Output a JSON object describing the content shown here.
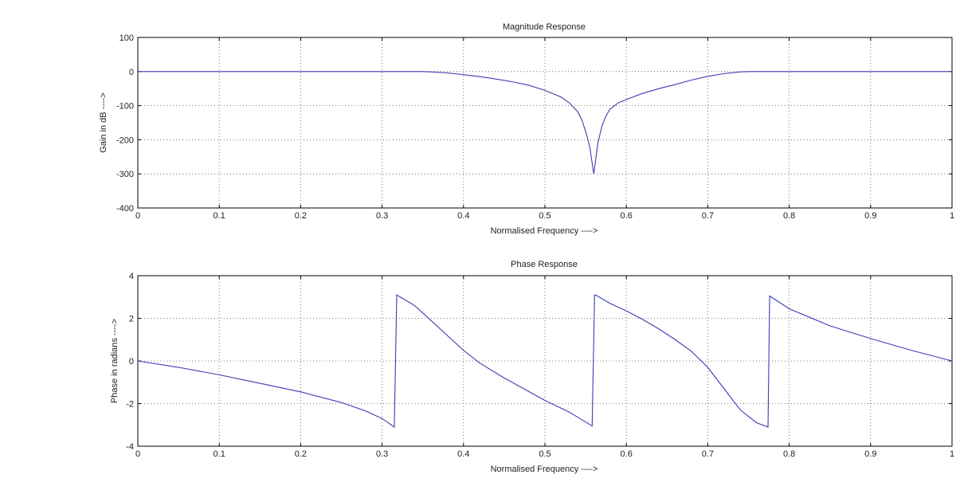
{
  "chart_data": [
    {
      "type": "line",
      "title": "Magnitude Response",
      "xlabel": "Normalised Frequency ---->",
      "ylabel": "Gain in dB ---->",
      "xlim": [
        0,
        1
      ],
      "ylim": [
        -400,
        100
      ],
      "xticks": [
        0,
        0.1,
        0.2,
        0.3,
        0.4,
        0.5,
        0.6,
        0.7,
        0.8,
        0.9,
        1
      ],
      "yticks": [
        -400,
        -300,
        -200,
        -100,
        0,
        100
      ],
      "grid": "dotted",
      "line_color": "#3c3cb4",
      "series": [
        {
          "x": [
            0,
            0.1,
            0.2,
            0.3,
            0.35,
            0.36,
            0.38,
            0.4,
            0.42,
            0.44,
            0.46,
            0.48,
            0.5,
            0.52,
            0.53,
            0.54,
            0.545,
            0.55,
            0.555,
            0.56,
            0.565,
            0.57,
            0.575,
            0.58,
            0.59,
            0.6,
            0.62,
            0.64,
            0.66,
            0.68,
            0.7,
            0.72,
            0.74,
            0.75,
            0.8,
            0.9,
            1.0
          ],
          "y": [
            0,
            0,
            0,
            0,
            0,
            -1,
            -4,
            -9,
            -15,
            -22,
            -30,
            -40,
            -55,
            -75,
            -92,
            -117,
            -140,
            -175,
            -220,
            -300,
            -210,
            -160,
            -130,
            -110,
            -92,
            -82,
            -64,
            -50,
            -38,
            -25,
            -14,
            -6,
            -1,
            0,
            0,
            0,
            0
          ]
        }
      ]
    },
    {
      "type": "line",
      "title": "Phase Response",
      "xlabel": "Normalised Frequency ---->",
      "ylabel": "Phase in radians ---->",
      "xlim": [
        0,
        1
      ],
      "ylim": [
        -4,
        4
      ],
      "xticks": [
        0,
        0.1,
        0.2,
        0.3,
        0.4,
        0.5,
        0.6,
        0.7,
        0.8,
        0.9,
        1
      ],
      "yticks": [
        -4,
        -2,
        0,
        2,
        4
      ],
      "grid": "dotted",
      "line_color": "#3c3cb4",
      "series": [
        {
          "x": [
            0,
            0.05,
            0.1,
            0.15,
            0.2,
            0.25,
            0.28,
            0.3,
            0.315,
            0.318,
            0.32,
            0.34,
            0.36,
            0.38,
            0.4,
            0.42,
            0.45,
            0.5,
            0.53,
            0.558,
            0.561,
            0.563,
            0.58,
            0.6,
            0.62,
            0.64,
            0.66,
            0.68,
            0.7,
            0.72,
            0.74,
            0.76,
            0.774,
            0.776,
            0.778,
            0.8,
            0.85,
            0.9,
            0.95,
            1.0
          ],
          "y": [
            0,
            -0.3,
            -0.65,
            -1.05,
            -1.45,
            -1.95,
            -2.35,
            -2.7,
            -3.1,
            3.1,
            3.05,
            2.6,
            1.9,
            1.2,
            0.5,
            -0.1,
            -0.8,
            -1.85,
            -2.4,
            -3.05,
            3.1,
            3.08,
            2.7,
            2.35,
            1.95,
            1.5,
            1.0,
            0.45,
            -0.3,
            -1.3,
            -2.3,
            -2.9,
            -3.1,
            3.05,
            3.0,
            2.45,
            1.65,
            1.05,
            0.5,
            0.0
          ]
        }
      ]
    }
  ]
}
